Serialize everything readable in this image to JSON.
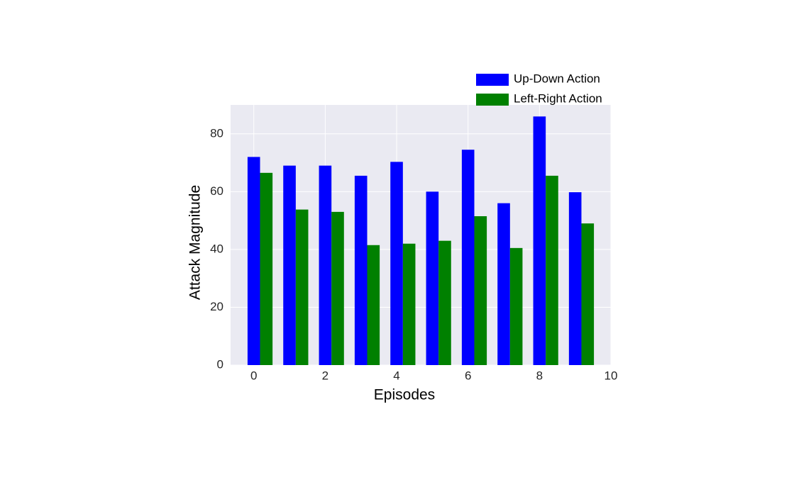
{
  "chart_data": {
    "type": "bar",
    "x_label": "Episodes",
    "y_label": "Attack Magnitude",
    "x": [
      0,
      1,
      2,
      3,
      4,
      5,
      6,
      7,
      8,
      9
    ],
    "series": [
      {
        "name": "Up-Down Action",
        "color": "#0000ff",
        "values": [
          72,
          69,
          69,
          65.5,
          70.3,
          60,
          74.5,
          56,
          86,
          59.8
        ]
      },
      {
        "name": "Left-Right Action",
        "color": "#008000",
        "values": [
          66.5,
          53.8,
          53,
          41.5,
          42,
          43,
          51.5,
          40.5,
          65.5,
          49
        ]
      }
    ],
    "xlim": [
      -0.65,
      10
    ],
    "xticks": [
      0,
      2,
      4,
      6,
      8,
      10
    ],
    "ylim": [
      0,
      90
    ],
    "yticks": [
      0,
      20,
      40,
      60,
      80
    ],
    "grid": true
  }
}
